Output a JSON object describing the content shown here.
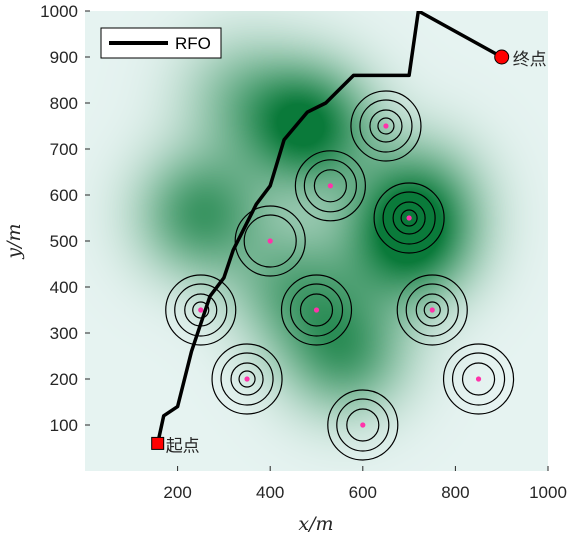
{
  "chart_data": {
    "type": "line",
    "title": "",
    "xlabel": "x/m",
    "ylabel": "y/m",
    "xlim": [
      0,
      1000
    ],
    "ylim": [
      0,
      1000
    ],
    "xticks": [
      "200",
      "400",
      "600",
      "800",
      "1000"
    ],
    "yticks": [
      "100",
      "200",
      "300",
      "400",
      "500",
      "600",
      "700",
      "800",
      "900",
      "1000"
    ],
    "legend": {
      "position": "top-left",
      "entries": [
        "RFO"
      ]
    },
    "series": [
      {
        "name": "RFO",
        "color": "#000000",
        "x": [
          157,
          170,
          200,
          230,
          270,
          300,
          320,
          370,
          400,
          430,
          480,
          520,
          540,
          580,
          700,
          720,
          900
        ],
        "y": [
          60,
          120,
          140,
          260,
          380,
          420,
          480,
          580,
          620,
          720,
          780,
          800,
          820,
          860,
          860,
          1000,
          900
        ]
      }
    ],
    "start": {
      "label": "起点",
      "x": 157,
      "y": 60,
      "color": "#ff0000"
    },
    "goal": {
      "label": "终点",
      "x": 900,
      "y": 900,
      "color": "#ff0000"
    },
    "threats": [
      {
        "x": 250,
        "y": 350,
        "rings": 4
      },
      {
        "x": 350,
        "y": 200,
        "rings": 4
      },
      {
        "x": 400,
        "y": 500,
        "rings": 2
      },
      {
        "x": 500,
        "y": 350,
        "rings": 3
      },
      {
        "x": 530,
        "y": 620,
        "rings": 3
      },
      {
        "x": 600,
        "y": 100,
        "rings": 3
      },
      {
        "x": 650,
        "y": 750,
        "rings": 4
      },
      {
        "x": 700,
        "y": 550,
        "rings": 4
      },
      {
        "x": 750,
        "y": 350,
        "rings": 4
      },
      {
        "x": 850,
        "y": 200,
        "rings": 3
      }
    ],
    "terrain_peaks": [
      {
        "x": 480,
        "y": 750,
        "strength": 1.0
      },
      {
        "x": 700,
        "y": 500,
        "strength": 0.9
      },
      {
        "x": 250,
        "y": 560,
        "strength": 0.75
      },
      {
        "x": 450,
        "y": 400,
        "strength": 0.55
      },
      {
        "x": 560,
        "y": 260,
        "strength": 0.7
      },
      {
        "x": 720,
        "y": 600,
        "strength": 0.5
      },
      {
        "x": 330,
        "y": 820,
        "strength": 0.35
      }
    ],
    "colors": {
      "terrain_base": "#e6f3f1",
      "terrain_peak": "#0a7a3a",
      "path": "#000000",
      "marker": "#ff0000",
      "threat_center": "#ff33aa"
    }
  }
}
